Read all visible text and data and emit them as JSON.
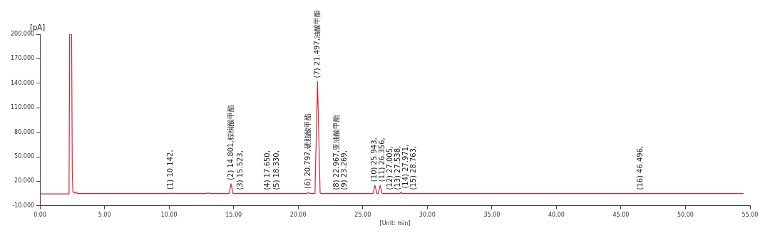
{
  "chart_data": {
    "type": "line",
    "xlabel": "[Unit: min]",
    "ylabel": "[pA]",
    "xlim": [
      0,
      55
    ],
    "ylim": [
      -10,
      200
    ],
    "xticks": [
      {
        "value": 0,
        "label": "0.00"
      },
      {
        "value": 5,
        "label": "5.00"
      },
      {
        "value": 10,
        "label": "10.00"
      },
      {
        "value": 15,
        "label": "15.00"
      },
      {
        "value": 20,
        "label": "20.00"
      },
      {
        "value": 25,
        "label": "25.00"
      },
      {
        "value": 30,
        "label": "30.00"
      },
      {
        "value": 35,
        "label": "35.00"
      },
      {
        "value": 40,
        "label": "40.00"
      },
      {
        "value": 45,
        "label": "45.00"
      },
      {
        "value": 50,
        "label": "50.00"
      },
      {
        "value": 55,
        "label": "55.00"
      }
    ],
    "yticks": [
      {
        "value": -10,
        "label": "-10.000"
      },
      {
        "value": 20,
        "label": "20.000"
      },
      {
        "value": 50,
        "label": "50.000"
      },
      {
        "value": 80,
        "label": "80.000"
      },
      {
        "value": 110,
        "label": "110.000"
      },
      {
        "value": 140,
        "label": "140.000"
      },
      {
        "value": 170,
        "label": "170.000"
      },
      {
        "value": 200,
        "label": "200.000"
      }
    ],
    "grid": false,
    "legend": false,
    "marker": "none",
    "line_style": "solid",
    "series": [
      {
        "color": "#cc2a36",
        "x": [
          0,
          2.25,
          2.3,
          2.45,
          2.5,
          2.55,
          2.7,
          2.8,
          2.9,
          10.1,
          10.142,
          10.2,
          12.9,
          13.0,
          13.2,
          14.65,
          14.801,
          14.95,
          15.523,
          20.7,
          20.797,
          20.9,
          21.3,
          21.497,
          21.7,
          21.8,
          25.8,
          25.943,
          26.1,
          26.2,
          26.356,
          26.5,
          27.9,
          27.971,
          28.05,
          54.5
        ],
        "values": [
          4.5,
          4.5,
          200,
          200,
          33,
          7,
          5.5,
          7,
          5,
          5,
          5.6,
          5,
          5,
          5.8,
          5,
          5,
          17,
          5,
          5,
          5,
          6.5,
          5,
          5,
          142,
          5.5,
          5,
          5,
          15,
          5,
          5,
          15,
          5,
          5,
          6.8,
          5,
          5
        ]
      }
    ],
    "annotations": [
      {
        "text": "(1) 10.142,",
        "x": 10.142,
        "y": 5.6
      },
      {
        "text": "(2) 14.801,棕榈酸甲酯",
        "x": 14.801,
        "y": 17
      },
      {
        "text": "(3) 15.523,",
        "x": 15.523,
        "y": 5
      },
      {
        "text": "(4) 17.650,",
        "x": 17.65,
        "y": 5
      },
      {
        "text": "(5) 18.330,",
        "x": 18.33,
        "y": 5
      },
      {
        "text": "(6) 20.797,硬脂酸甲酯",
        "x": 20.797,
        "y": 6.5
      },
      {
        "text": "(7) 21.497,油酸甲酯",
        "x": 21.497,
        "y": 142
      },
      {
        "text": "(8) 22.967,亚油酸甲酯",
        "x": 22.967,
        "y": 5
      },
      {
        "text": "(9) 23.269,",
        "x": 23.269,
        "y": 5
      },
      {
        "text": "(10) 25.943,",
        "x": 25.943,
        "y": 15
      },
      {
        "text": "(11) 26.356,",
        "x": 26.356,
        "y": 15
      },
      {
        "text": "(12) 27.005,",
        "x": 27.005,
        "y": 5
      },
      {
        "text": "(13) 27.538,",
        "x": 27.538,
        "y": 5
      },
      {
        "text": "(14) 27.971,",
        "x": 27.971,
        "y": 6.8
      },
      {
        "text": "(15) 28.763,",
        "x": 28.763,
        "y": 5
      },
      {
        "text": "(16) 46.496,",
        "x": 46.496,
        "y": 5
      }
    ]
  }
}
